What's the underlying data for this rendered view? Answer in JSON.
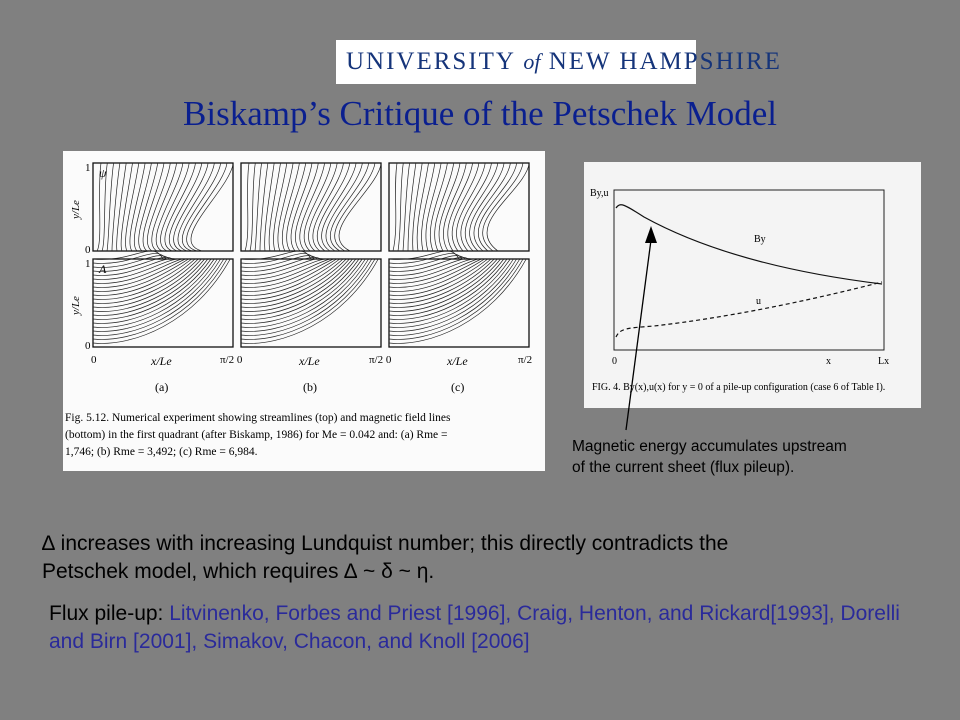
{
  "logo": {
    "text_university": "UNIVERSITY",
    "text_of": "of",
    "text_new": "NEW",
    "text_hampshire": "HAMPSHIRE"
  },
  "title": "Biskamp’s Critique of the Petschek Model",
  "figure_left": {
    "panel_psi": "ψ",
    "panel_A": "A",
    "ylabel_top": "y/Le",
    "ylabel_bottom": "y/Le",
    "tick_one_top": "1",
    "tick_zero_top": "0",
    "tick_one_bottom": "1",
    "tick_zero_bottom": "0",
    "x_ticks": [
      "0",
      "π/2 0",
      "π/2 0",
      "π/2"
    ],
    "xlabel": "x/Le",
    "panel_labels": [
      "(a)",
      "(b)",
      "(c)"
    ],
    "caption_lines": [
      "Fig. 5.12.  Numerical experiment showing streamlines (top) and magnetic field lines",
      "(bottom) in the first quadrant (after Biskamp, 1986) for Me = 0.042 and: (a) Rme =",
      "1,746; (b) Rme = 3,492; (c) Rme = 6,984."
    ]
  },
  "figure_right": {
    "ylabel": "By,u",
    "curve_by": "By",
    "curve_u": "u",
    "x_zero": "0",
    "x_label": "x",
    "x_end": "Lx",
    "caption": "FIG. 4. By(x),u(x) for y = 0 of a pile-up configuration (case 6 of Table I)."
  },
  "annotation": {
    "line1": "Magnetic energy accumulates upstream",
    "line2": "of the current sheet (flux pileup)."
  },
  "body1": {
    "line1": "∆ increases with increasing Lundquist number; this directly contradicts the",
    "line2": "Petschek model, which requires ∆ ~ δ ~ η."
  },
  "body2": {
    "lead": "Flux pile-up: ",
    "refs": "Litvinenko, Forbes and Priest [1996], Craig, Henton, and Rickard[1993], Dorelli and Birn [2001], Simakov, Chacon, and Knoll [2006]"
  },
  "colors": {
    "background": "#808080",
    "title": "#0a1f8f",
    "reference": "#2a2a9a",
    "logo_blue": "#15347a"
  }
}
